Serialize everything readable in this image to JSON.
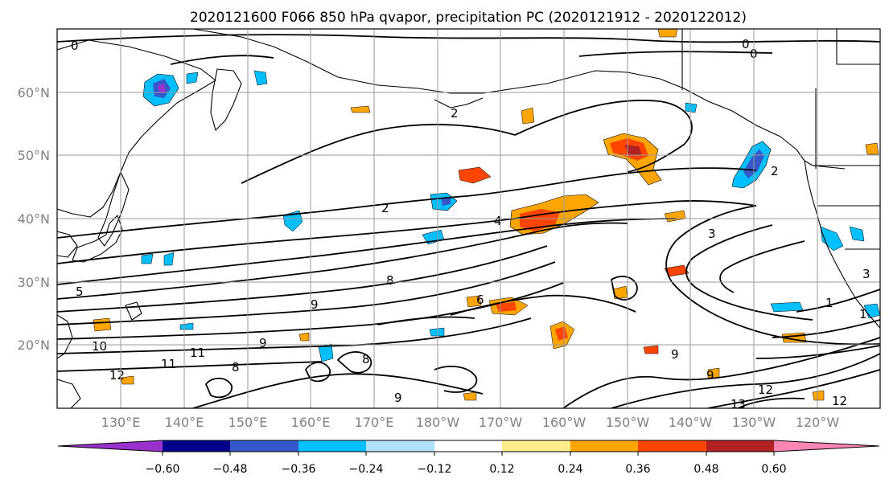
{
  "title": "2020121600 F066 850 hPa qvapor, precipitation PC (2020121912 - 2020122012)",
  "lat_labels": [
    "60°N",
    "50°N",
    "40°N",
    "30°N",
    "20°N"
  ],
  "lon_labels": [
    "130°E",
    "140°E",
    "150°E",
    "160°E",
    "170°E",
    "180°W",
    "170°W",
    "160°W",
    "150°W",
    "140°W",
    "130°W",
    "120°W"
  ],
  "colorbar": {
    "tick_labels": [
      "−0.60",
      "−0.48",
      "−0.36",
      "−0.24",
      "−0.12",
      "0.12",
      "0.24",
      "0.36",
      "0.48",
      "0.60"
    ],
    "colors": [
      "#9932cc",
      "#00008b",
      "#3457c9",
      "#00bfff",
      "#b0e0fa",
      "#ffffff",
      "#ffec8b",
      "#ffa500",
      "#ff4500",
      "#b22222",
      "#ff86b4"
    ]
  },
  "contour_labels": [
    "0",
    "0",
    "0",
    "2",
    "2",
    "2",
    "4",
    "5",
    "6",
    "8",
    "8",
    "8",
    "9",
    "9",
    "9",
    "9",
    "9",
    "10",
    "11",
    "11",
    "12",
    "12",
    "12",
    "13",
    "1",
    "1",
    "3",
    "3"
  ]
}
